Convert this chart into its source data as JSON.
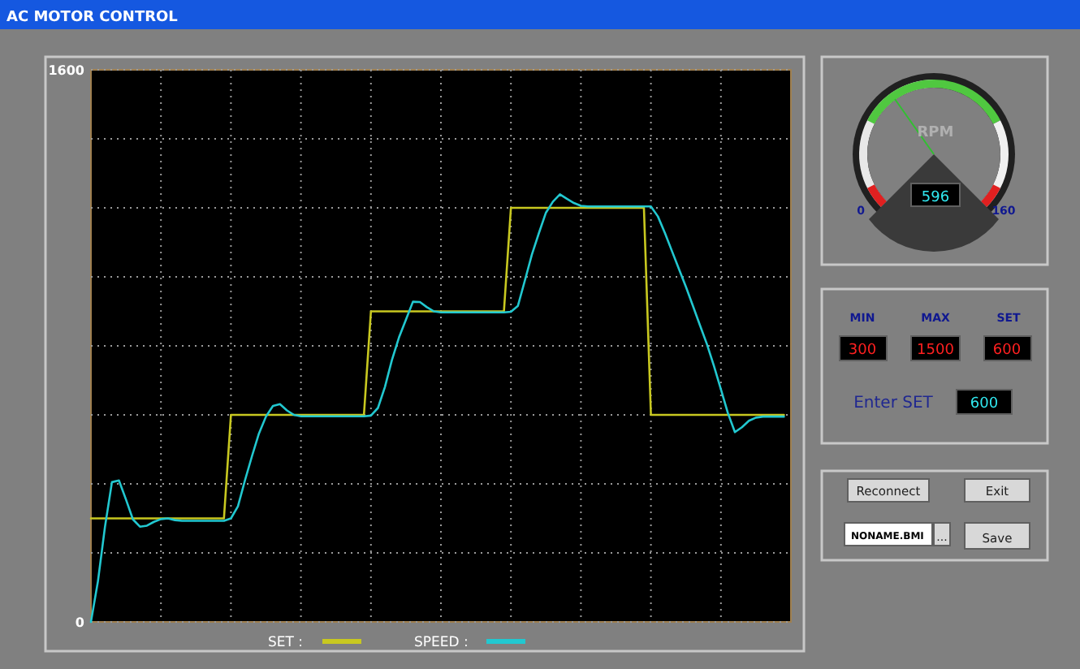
{
  "chart_data": [
    {
      "type": "line",
      "title": "AC MOTOR CONTROL",
      "ylim": [
        0,
        1600
      ],
      "categories": [
        null,
        null,
        null,
        null,
        null,
        null,
        null,
        null,
        null,
        null,
        null,
        null,
        null,
        null,
        null,
        null,
        null,
        null,
        null,
        null,
        null,
        null,
        null,
        null,
        null,
        null,
        null,
        null,
        null,
        null,
        null,
        null,
        null,
        null,
        null,
        null,
        null,
        null,
        null,
        null,
        null,
        null,
        null,
        null,
        null,
        null,
        null,
        null,
        null,
        null,
        null,
        null,
        null,
        null,
        null,
        null,
        null,
        null,
        null,
        null,
        null,
        null,
        null,
        null,
        null,
        null,
        null,
        null,
        null,
        null,
        null,
        null,
        null,
        null,
        null,
        null,
        null,
        null,
        null,
        null,
        null,
        null,
        null,
        null,
        null,
        null,
        null,
        null,
        null,
        null,
        null,
        null,
        null,
        null,
        null,
        null,
        null,
        null,
        null,
        null,
        null
      ],
      "yticks": [
        0,
        {
          "value": 200,
          "label": null
        },
        {
          "value": 400,
          "label": null
        },
        {
          "value": 600,
          "label": null
        },
        {
          "value": 800,
          "label": null
        },
        {
          "value": 1000,
          "label": null
        },
        {
          "value": 1200,
          "label": null
        },
        {
          "value": 1400,
          "label": null
        },
        1600
      ],
      "grid": true,
      "legend": "bottom",
      "marker": "none",
      "line_style": "solid",
      "series": [
        {
          "name": "SET :",
          "color": "#c8c820",
          "values": [
            300,
            300,
            300,
            300,
            300,
            300,
            300,
            300,
            300,
            300,
            300,
            300,
            300,
            300,
            300,
            300,
            300,
            300,
            300,
            300,
            600,
            600,
            600,
            600,
            600,
            600,
            600,
            600,
            600,
            600,
            600,
            600,
            600,
            600,
            600,
            600,
            600,
            600,
            600,
            600,
            900,
            900,
            900,
            900,
            900,
            900,
            900,
            900,
            900,
            900,
            900,
            900,
            900,
            900,
            900,
            900,
            900,
            900,
            900,
            900,
            1200,
            1200,
            1200,
            1200,
            1200,
            1200,
            1200,
            1200,
            1200,
            1200,
            1200,
            1200,
            1200,
            1200,
            1200,
            1200,
            1200,
            1200,
            1200,
            1200,
            600,
            600,
            600,
            600,
            600,
            600,
            600,
            600,
            600,
            600,
            600,
            600,
            600,
            600,
            600,
            600,
            600,
            600,
            600,
            600,
            null
          ]
        },
        {
          "name": "SPEED :",
          "color": "#22c8d0",
          "values": [
            0,
            118,
            275,
            405,
            410,
            355,
            297,
            276,
            279,
            290,
            298,
            300,
            295,
            293,
            293,
            293,
            293,
            293,
            293,
            293,
            300,
            335,
            410,
            480,
            546,
            595,
            626,
            631,
            613,
            600,
            596,
            596,
            596,
            596,
            596,
            596,
            596,
            596,
            596,
            596,
            598,
            620,
            681,
            759,
            824,
            876,
            928,
            927,
            912,
            900,
            897,
            897,
            897,
            897,
            897,
            897,
            897,
            897,
            897,
            897,
            899,
            916,
            990,
            1065,
            1127,
            1186,
            1218,
            1239,
            1226,
            1214,
            1206,
            1204,
            1204,
            1204,
            1204,
            1204,
            1204,
            1204,
            1204,
            1204,
            1204,
            1175,
            1127,
            1075,
            1023,
            971,
            916,
            860,
            805,
            742,
            674,
            605,
            550,
            564,
            583,
            592,
            595,
            595,
            595,
            595,
            null
          ]
        }
      ]
    },
    {
      "type": "other",
      "annotations": [
        "RPM",
        "596",
        "0",
        "160",
        "MIN",
        "MAX",
        "SET",
        "300",
        "1500",
        "600",
        "Enter SET",
        "600",
        "Reconnect",
        "Exit",
        "NONAME.BMI",
        "...",
        "Save"
      ]
    }
  ]
}
